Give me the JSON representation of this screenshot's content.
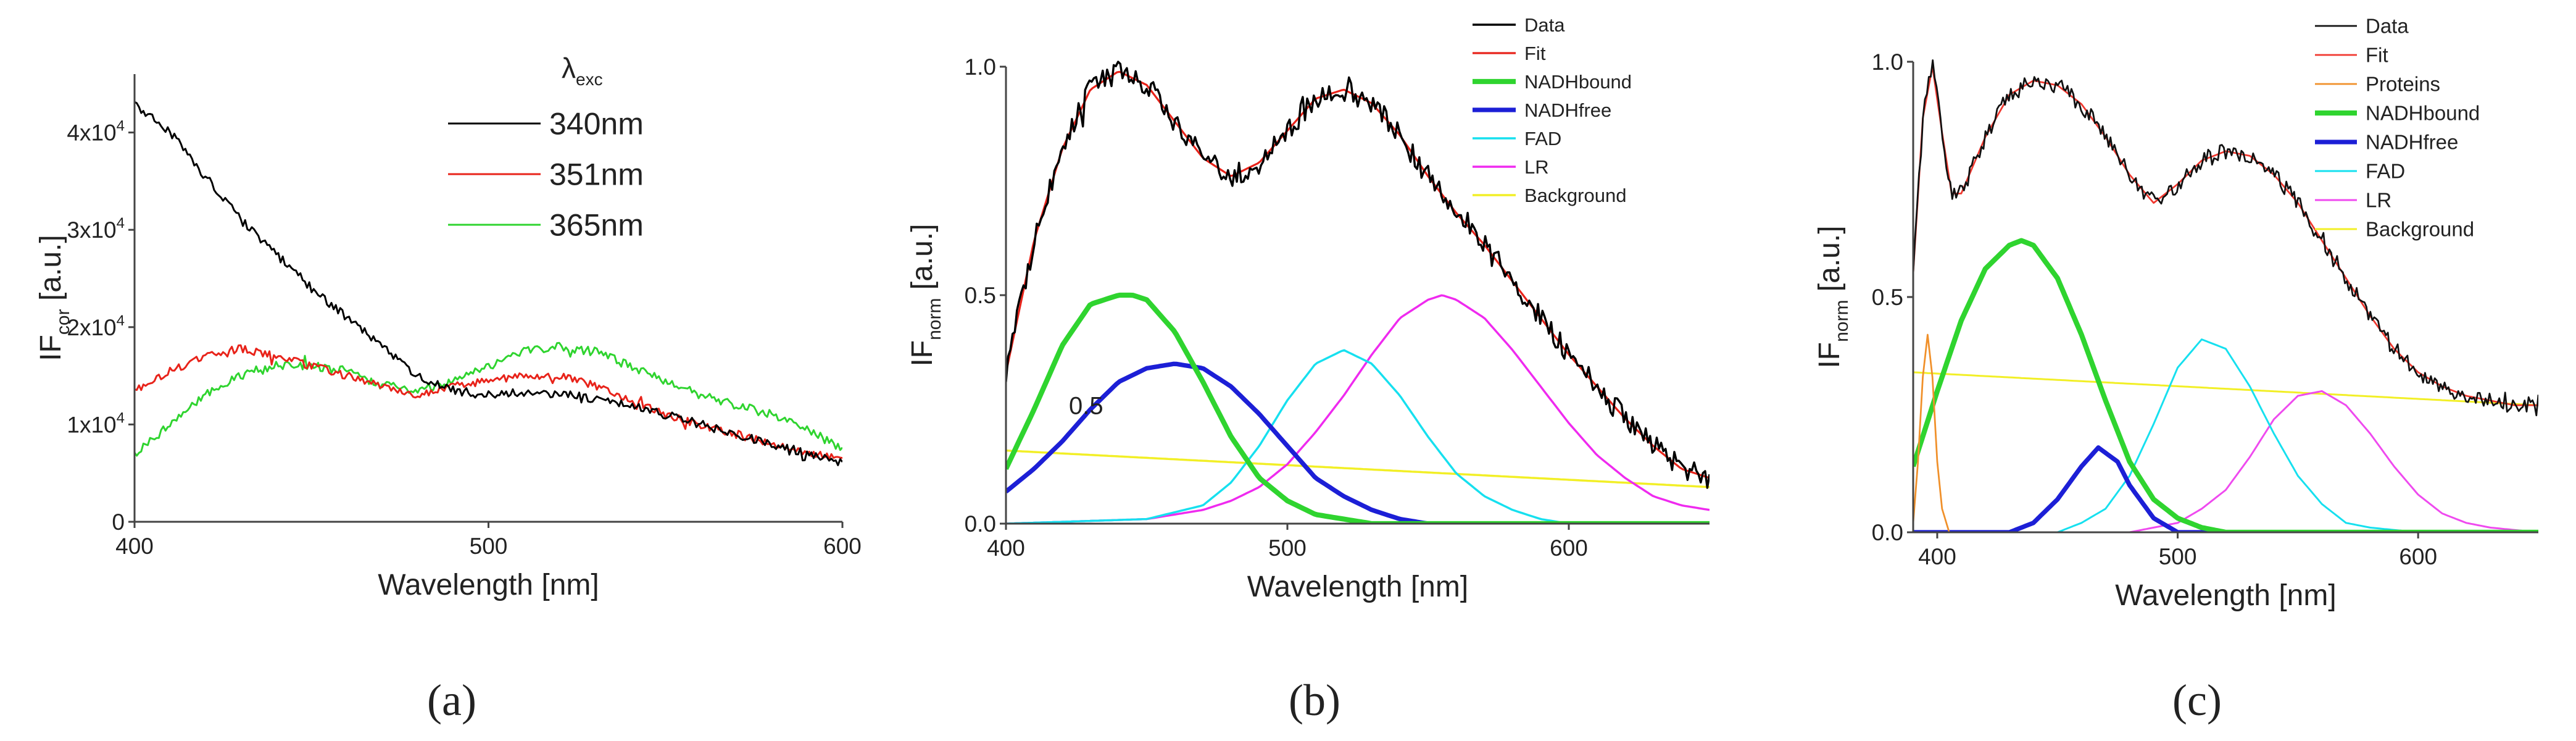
{
  "chart_data": [
    {
      "type": "line",
      "panel": "a",
      "caption": "(a)",
      "xlabel": "Wavelength [nm]",
      "ylabel_main": "IF",
      "ylabel_sub": "cor",
      "ylabel_unit": " [a.u.]",
      "xlim": [
        400,
        600
      ],
      "ylim": [
        0,
        46000
      ],
      "xticks": [
        400,
        500,
        600
      ],
      "yticks": [
        {
          "v": 0,
          "base": "0",
          "exp": ""
        },
        {
          "v": 10000,
          "base": "1x10",
          "exp": "4"
        },
        {
          "v": 20000,
          "base": "2x10",
          "exp": "4"
        },
        {
          "v": 30000,
          "base": "3x10",
          "exp": "4"
        },
        {
          "v": 40000,
          "base": "4x10",
          "exp": "4"
        }
      ],
      "legend_title_main": "λ",
      "legend_title_sub": "exc",
      "legend_position": "top-right",
      "series": [
        {
          "name": "340nm",
          "color": "#000000",
          "width": 1.3,
          "noise": 450,
          "x": [
            400,
            410,
            420,
            430,
            440,
            450,
            460,
            470,
            480,
            490,
            500,
            510,
            520,
            530,
            540,
            550,
            560,
            570,
            580,
            590,
            600
          ],
          "y": [
            43000,
            40000,
            35500,
            31000,
            27500,
            24000,
            21000,
            18000,
            15000,
            13500,
            13000,
            13300,
            13200,
            12600,
            11900,
            11000,
            10000,
            9000,
            8000,
            7000,
            6000
          ]
        },
        {
          "name": "351nm",
          "color": "#e8231a",
          "width": 1.3,
          "noise": 400,
          "x": [
            400,
            410,
            420,
            430,
            440,
            450,
            460,
            470,
            480,
            490,
            500,
            510,
            520,
            530,
            540,
            550,
            560,
            570,
            580,
            590,
            600
          ],
          "y": [
            13500,
            15500,
            17000,
            17800,
            17000,
            16000,
            15000,
            14000,
            13000,
            14000,
            14500,
            15000,
            15000,
            14000,
            12500,
            11000,
            10000,
            9000,
            8000,
            7000,
            6500
          ]
        },
        {
          "name": "365nm",
          "color": "#2fd42f",
          "width": 1.3,
          "noise": 450,
          "x": [
            400,
            410,
            420,
            430,
            440,
            450,
            460,
            470,
            480,
            490,
            500,
            510,
            520,
            530,
            540,
            550,
            560,
            570,
            580,
            590,
            600
          ],
          "y": [
            7000,
            10000,
            13000,
            15000,
            16000,
            16000,
            15500,
            14000,
            13500,
            14500,
            16000,
            17500,
            18000,
            17500,
            16000,
            14500,
            13000,
            12000,
            11000,
            9500,
            7500
          ]
        }
      ]
    },
    {
      "type": "line",
      "panel": "b",
      "caption": "(b)",
      "xlabel": "Wavelength [nm]",
      "ylabel_main": "IF",
      "ylabel_sub": "norm",
      "ylabel_unit": " [a.u.]",
      "xlim": [
        400,
        650
      ],
      "ylim": [
        0,
        1.0
      ],
      "xticks": [
        400,
        500,
        600
      ],
      "yticks": [
        {
          "v": 0,
          "base": "0.0",
          "exp": ""
        },
        {
          "v": 0.5,
          "base": "0.5",
          "exp": ""
        },
        {
          "v": 1.0,
          "base": "1.0",
          "exp": ""
        }
      ],
      "annotation": "0.5",
      "legend_position": "top-right",
      "series": [
        {
          "name": "Data",
          "color": "#000000",
          "width": 1.5,
          "noise": 0.025,
          "x": [
            400,
            410,
            420,
            430,
            440,
            450,
            460,
            470,
            480,
            490,
            500,
            510,
            520,
            530,
            540,
            550,
            560,
            570,
            580,
            590,
            600,
            610,
            620,
            630,
            640,
            650
          ],
          "y": [
            0.33,
            0.62,
            0.82,
            0.95,
            0.99,
            0.96,
            0.88,
            0.8,
            0.76,
            0.79,
            0.86,
            0.93,
            0.95,
            0.92,
            0.85,
            0.76,
            0.68,
            0.61,
            0.53,
            0.45,
            0.37,
            0.3,
            0.23,
            0.17,
            0.12,
            0.1
          ]
        },
        {
          "name": "Fit",
          "color": "#e8231a",
          "width": 1.4,
          "noise": 0,
          "x": [
            400,
            410,
            420,
            430,
            440,
            450,
            460,
            470,
            480,
            490,
            500,
            510,
            520,
            530,
            540,
            550,
            560,
            570,
            580,
            590,
            600,
            610,
            620,
            630,
            640,
            650
          ],
          "y": [
            0.33,
            0.62,
            0.82,
            0.95,
            0.99,
            0.96,
            0.88,
            0.8,
            0.76,
            0.79,
            0.86,
            0.93,
            0.95,
            0.92,
            0.85,
            0.76,
            0.68,
            0.61,
            0.53,
            0.45,
            0.37,
            0.3,
            0.23,
            0.17,
            0.12,
            0.1
          ]
        },
        {
          "name": "NADHbound",
          "color": "#2fd42f",
          "width": 3.6,
          "noise": 0,
          "x": [
            400,
            410,
            420,
            430,
            440,
            445,
            450,
            460,
            470,
            480,
            490,
            500,
            510,
            520,
            530,
            540,
            550,
            560,
            580,
            600,
            650
          ],
          "y": [
            0.12,
            0.25,
            0.39,
            0.48,
            0.5,
            0.5,
            0.49,
            0.42,
            0.31,
            0.19,
            0.1,
            0.05,
            0.02,
            0.01,
            0.0,
            0.0,
            0.0,
            0.0,
            0.0,
            0.0,
            0.0
          ]
        },
        {
          "name": "NADHfree",
          "color": "#1c1fd6",
          "width": 3.2,
          "noise": 0,
          "x": [
            400,
            410,
            420,
            430,
            440,
            450,
            460,
            470,
            480,
            490,
            500,
            510,
            520,
            530,
            540,
            550,
            560,
            580,
            600,
            650
          ],
          "y": [
            0.07,
            0.12,
            0.18,
            0.25,
            0.31,
            0.34,
            0.35,
            0.34,
            0.3,
            0.24,
            0.17,
            0.1,
            0.06,
            0.03,
            0.01,
            0.0,
            0.0,
            0.0,
            0.0,
            0.0
          ]
        },
        {
          "name": "FAD",
          "color": "#16e0ef",
          "width": 1.5,
          "noise": 0,
          "x": [
            400,
            450,
            470,
            480,
            490,
            500,
            510,
            520,
            530,
            540,
            550,
            560,
            570,
            580,
            590,
            600,
            650
          ],
          "y": [
            0.0,
            0.01,
            0.04,
            0.09,
            0.17,
            0.27,
            0.35,
            0.38,
            0.35,
            0.28,
            0.19,
            0.11,
            0.06,
            0.03,
            0.01,
            0.0,
            0.0
          ]
        },
        {
          "name": "LR",
          "color": "#ef2aef",
          "width": 1.5,
          "noise": 0,
          "x": [
            400,
            450,
            470,
            480,
            490,
            500,
            510,
            520,
            530,
            540,
            550,
            555,
            560,
            570,
            580,
            590,
            600,
            610,
            620,
            630,
            640,
            650
          ],
          "y": [
            0.0,
            0.01,
            0.03,
            0.05,
            0.08,
            0.13,
            0.2,
            0.28,
            0.37,
            0.45,
            0.49,
            0.5,
            0.49,
            0.45,
            0.38,
            0.3,
            0.22,
            0.15,
            0.1,
            0.06,
            0.04,
            0.03
          ]
        },
        {
          "name": "Background",
          "color": "#f2ef26",
          "width": 1.5,
          "noise": 0,
          "x": [
            400,
            650
          ],
          "y": [
            0.16,
            0.08
          ]
        }
      ]
    },
    {
      "type": "line",
      "panel": "c",
      "caption": "(c)",
      "xlabel": "Wavelength [nm]",
      "ylabel_main": "IF",
      "ylabel_sub": "norm",
      "ylabel_unit": " [a.u.]",
      "xlim": [
        390,
        650
      ],
      "ylim": [
        0,
        1.0
      ],
      "xticks": [
        400,
        500,
        600
      ],
      "yticks": [
        {
          "v": 0,
          "base": "0.0",
          "exp": ""
        },
        {
          "v": 0.5,
          "base": "0.5",
          "exp": ""
        },
        {
          "v": 1.0,
          "base": "1.0",
          "exp": ""
        }
      ],
      "legend_position": "top-right",
      "series": [
        {
          "name": "Data",
          "color": "#111111",
          "width": 1.2,
          "noise": 0.018,
          "x": [
            390,
            394,
            398,
            402,
            406,
            410,
            420,
            430,
            440,
            450,
            460,
            470,
            480,
            490,
            500,
            510,
            520,
            530,
            540,
            550,
            560,
            570,
            580,
            590,
            600,
            610,
            620,
            630,
            640,
            650
          ],
          "y": [
            0.55,
            0.88,
            0.99,
            0.85,
            0.72,
            0.72,
            0.84,
            0.93,
            0.96,
            0.95,
            0.91,
            0.84,
            0.76,
            0.7,
            0.74,
            0.79,
            0.81,
            0.8,
            0.76,
            0.7,
            0.62,
            0.54,
            0.46,
            0.39,
            0.34,
            0.31,
            0.29,
            0.28,
            0.27,
            0.27
          ]
        },
        {
          "name": "Fit",
          "color": "#f0382f",
          "width": 1.2,
          "noise": 0,
          "x": [
            390,
            394,
            398,
            402,
            406,
            410,
            420,
            430,
            440,
            450,
            460,
            470,
            480,
            490,
            500,
            510,
            520,
            530,
            540,
            550,
            560,
            570,
            580,
            590,
            600,
            610,
            620,
            630,
            640,
            650
          ],
          "y": [
            0.55,
            0.88,
            0.99,
            0.85,
            0.72,
            0.72,
            0.84,
            0.93,
            0.96,
            0.95,
            0.91,
            0.84,
            0.76,
            0.7,
            0.74,
            0.79,
            0.81,
            0.8,
            0.76,
            0.7,
            0.62,
            0.54,
            0.46,
            0.39,
            0.34,
            0.31,
            0.29,
            0.28,
            0.27,
            0.27
          ]
        },
        {
          "name": "Proteins",
          "color": "#f0902a",
          "width": 1.2,
          "noise": 0,
          "x": [
            390,
            392,
            394,
            396,
            398,
            400,
            402,
            405,
            410,
            650
          ],
          "y": [
            0.02,
            0.15,
            0.33,
            0.42,
            0.33,
            0.15,
            0.05,
            0.0,
            0.0,
            0.0
          ]
        },
        {
          "name": "NADHbound",
          "color": "#2fd42f",
          "width": 3.6,
          "noise": 0,
          "x": [
            390,
            400,
            410,
            420,
            430,
            435,
            440,
            450,
            460,
            470,
            480,
            490,
            500,
            510,
            520,
            530,
            650
          ],
          "y": [
            0.14,
            0.3,
            0.45,
            0.56,
            0.61,
            0.62,
            0.61,
            0.54,
            0.42,
            0.28,
            0.15,
            0.07,
            0.03,
            0.01,
            0.0,
            0.0,
            0.0
          ]
        },
        {
          "name": "NADHfree",
          "color": "#1c1fd6",
          "width": 3.2,
          "noise": 0,
          "x": [
            390,
            430,
            440,
            450,
            460,
            467,
            475,
            480,
            490,
            500,
            650
          ],
          "y": [
            0.0,
            0.0,
            0.02,
            0.07,
            0.14,
            0.18,
            0.15,
            0.1,
            0.03,
            0.0,
            0.0
          ]
        },
        {
          "name": "FAD",
          "color": "#16e0ef",
          "width": 1.3,
          "noise": 0,
          "x": [
            390,
            450,
            460,
            470,
            480,
            490,
            500,
            510,
            520,
            530,
            540,
            550,
            560,
            570,
            580,
            600,
            650
          ],
          "y": [
            0.0,
            0.0,
            0.02,
            0.05,
            0.12,
            0.23,
            0.35,
            0.41,
            0.39,
            0.31,
            0.21,
            0.12,
            0.06,
            0.02,
            0.01,
            0.0,
            0.0
          ]
        },
        {
          "name": "LR",
          "color": "#ef4aef",
          "width": 1.3,
          "noise": 0,
          "x": [
            390,
            480,
            490,
            500,
            510,
            520,
            530,
            540,
            550,
            560,
            570,
            580,
            590,
            600,
            610,
            620,
            630,
            650
          ],
          "y": [
            0.0,
            0.0,
            0.01,
            0.02,
            0.05,
            0.09,
            0.16,
            0.24,
            0.29,
            0.3,
            0.27,
            0.21,
            0.14,
            0.08,
            0.04,
            0.02,
            0.01,
            0.0
          ]
        },
        {
          "name": "Background",
          "color": "#f2ef26",
          "width": 1.3,
          "noise": 0,
          "x": [
            390,
            650
          ],
          "y": [
            0.34,
            0.27
          ]
        }
      ]
    }
  ]
}
